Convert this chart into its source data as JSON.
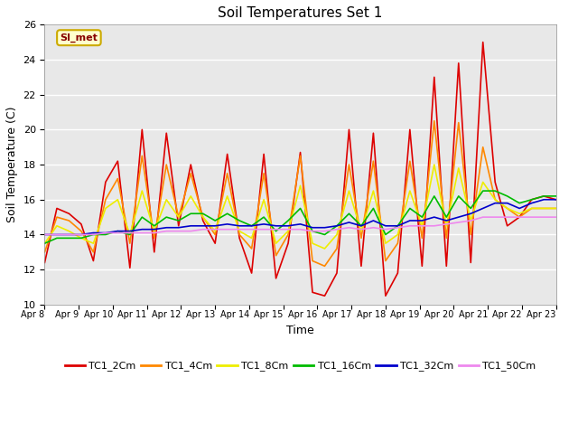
{
  "title": "Soil Temperatures Set 1",
  "xlabel": "Time",
  "ylabel": "Soil Temperature (C)",
  "ylim": [
    10,
    26
  ],
  "yticks": [
    10,
    12,
    14,
    16,
    18,
    20,
    22,
    24,
    26
  ],
  "fig_bg_color": "#ffffff",
  "plot_bg_color": "#e8e8e8",
  "grid_color": "#ffffff",
  "annotation_text": "SI_met",
  "annotation_bg": "#ffffcc",
  "annotation_border": "#ccaa00",
  "annotation_text_color": "#880000",
  "series_keys": [
    "TC1_2Cm",
    "TC1_4Cm",
    "TC1_8Cm",
    "TC1_16Cm",
    "TC1_32Cm",
    "TC1_50Cm"
  ],
  "series_colors": [
    "#dd0000",
    "#ff8800",
    "#eeee00",
    "#00bb00",
    "#0000cc",
    "#ee88ee"
  ],
  "series_lw": [
    1.2,
    1.2,
    1.2,
    1.2,
    1.2,
    1.2
  ],
  "x_labels": [
    "Apr 8",
    "Apr 9",
    "Apr 10",
    "Apr 11",
    "Apr 12",
    "Apr 13",
    "Apr 14",
    "Apr 15",
    "Apr 16",
    "Apr 17",
    "Apr 18",
    "Apr 19",
    "Apr 20",
    "Apr 21",
    "Apr 22",
    "Apr 23"
  ],
  "x_positions": [
    0,
    1,
    2,
    3,
    4,
    5,
    6,
    7,
    8,
    9,
    10,
    11,
    12,
    13,
    14,
    15
  ],
  "TC1_2Cm": [
    12.4,
    15.5,
    15.2,
    14.6,
    12.5,
    17.0,
    18.2,
    12.1,
    20.0,
    13.0,
    19.8,
    14.5,
    18.0,
    14.8,
    13.5,
    18.6,
    13.8,
    11.8,
    18.6,
    11.5,
    13.5,
    18.7,
    10.7,
    10.5,
    11.8,
    20.0,
    12.2,
    19.8,
    10.5,
    11.8,
    20.0,
    12.2,
    23.0,
    12.2,
    23.8,
    12.4,
    25.0,
    17.0,
    14.5,
    15.0,
    16.0,
    16.2,
    16.0
  ],
  "TC1_4Cm": [
    13.0,
    15.0,
    14.8,
    14.2,
    13.0,
    16.0,
    17.2,
    13.5,
    18.5,
    13.8,
    18.0,
    15.0,
    17.5,
    15.0,
    14.0,
    17.5,
    14.0,
    13.2,
    17.5,
    12.8,
    14.0,
    18.5,
    12.5,
    12.2,
    13.2,
    18.0,
    13.8,
    18.2,
    12.5,
    13.5,
    18.2,
    13.8,
    20.5,
    13.8,
    20.4,
    14.0,
    19.0,
    16.0,
    15.5,
    15.0,
    15.5,
    15.5,
    15.5
  ],
  "TC1_8Cm": [
    13.5,
    14.5,
    14.2,
    13.8,
    13.5,
    15.5,
    16.0,
    14.0,
    16.5,
    14.2,
    16.0,
    15.0,
    16.2,
    15.0,
    14.2,
    16.2,
    14.2,
    13.8,
    16.0,
    13.5,
    14.2,
    16.8,
    13.5,
    13.2,
    14.0,
    16.5,
    14.2,
    16.5,
    13.5,
    14.0,
    16.5,
    14.5,
    18.0,
    14.5,
    17.8,
    14.8,
    17.0,
    16.0,
    15.5,
    15.2,
    15.5,
    15.5,
    15.5
  ],
  "TC1_16Cm": [
    13.5,
    13.8,
    13.8,
    13.8,
    14.0,
    14.0,
    14.2,
    14.0,
    15.0,
    14.5,
    15.0,
    14.8,
    15.2,
    15.2,
    14.8,
    15.2,
    14.8,
    14.5,
    15.0,
    14.2,
    14.8,
    15.5,
    14.2,
    14.0,
    14.5,
    15.2,
    14.5,
    15.5,
    14.0,
    14.5,
    15.5,
    15.0,
    16.2,
    15.0,
    16.2,
    15.5,
    16.5,
    16.5,
    16.2,
    15.8,
    16.0,
    16.2,
    16.2
  ],
  "TC1_32Cm": [
    14.0,
    14.0,
    14.0,
    14.0,
    14.1,
    14.1,
    14.2,
    14.2,
    14.3,
    14.3,
    14.4,
    14.4,
    14.5,
    14.5,
    14.5,
    14.6,
    14.5,
    14.5,
    14.6,
    14.5,
    14.5,
    14.6,
    14.4,
    14.4,
    14.5,
    14.7,
    14.5,
    14.8,
    14.5,
    14.5,
    14.8,
    14.8,
    15.0,
    14.8,
    15.0,
    15.2,
    15.5,
    15.8,
    15.8,
    15.5,
    15.8,
    16.0,
    16.0
  ],
  "TC1_50Cm": [
    14.0,
    14.0,
    14.0,
    14.0,
    14.0,
    14.1,
    14.1,
    14.1,
    14.1,
    14.1,
    14.2,
    14.2,
    14.2,
    14.3,
    14.3,
    14.3,
    14.3,
    14.3,
    14.3,
    14.3,
    14.3,
    14.3,
    14.2,
    14.2,
    14.3,
    14.4,
    14.3,
    14.4,
    14.3,
    14.4,
    14.5,
    14.5,
    14.5,
    14.6,
    14.7,
    14.8,
    15.0,
    15.0,
    15.0,
    15.0,
    15.0,
    15.0,
    15.0
  ]
}
